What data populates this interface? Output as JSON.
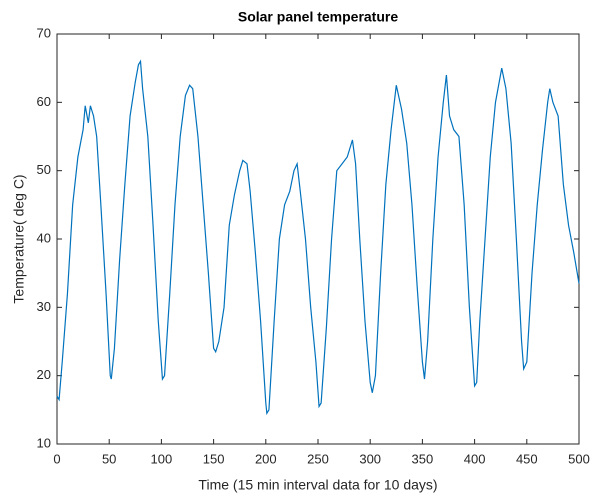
{
  "chart_data": {
    "type": "line",
    "title": "Solar panel temperature",
    "x_label": "Time (15 min interval data for 10 days)",
    "y_label": "Temperature( deg C)",
    "x": [
      0,
      2,
      5,
      10,
      15,
      20,
      25,
      27,
      30,
      32,
      35,
      38,
      42,
      47,
      51,
      52,
      55,
      60,
      65,
      70,
      75,
      78,
      80,
      82,
      87,
      92,
      97,
      101,
      103,
      108,
      113,
      118,
      123,
      127,
      130,
      135,
      140,
      145,
      150,
      152,
      155,
      160,
      165,
      170,
      175,
      178,
      182,
      185,
      190,
      195,
      200,
      201,
      203,
      208,
      213,
      218,
      223,
      227,
      230,
      233,
      238,
      243,
      248,
      251,
      253,
      258,
      263,
      268,
      273,
      278,
      283,
      286,
      290,
      295,
      300,
      302,
      305,
      310,
      315,
      320,
      325,
      330,
      335,
      340,
      345,
      350,
      352,
      355,
      360,
      365,
      370,
      373,
      376,
      380,
      385,
      390,
      395,
      400,
      402,
      405,
      410,
      415,
      420,
      426,
      430,
      435,
      440,
      445,
      447,
      450,
      455,
      460,
      465,
      470,
      472,
      475,
      480,
      485,
      490,
      495,
      500
    ],
    "series": [
      {
        "name": "temperature",
        "color": "#0072bd",
        "values": [
          17,
          16.5,
          22,
          32,
          45,
          52,
          56,
          59.5,
          57,
          59.5,
          58,
          55,
          45,
          32,
          20,
          19.5,
          24,
          37,
          48,
          58,
          63,
          65.5,
          66,
          62,
          55,
          42,
          28,
          19.5,
          20,
          32,
          45,
          55,
          61,
          62.5,
          62,
          55,
          45,
          35,
          24,
          23.5,
          25,
          30,
          42,
          46.5,
          50,
          51.5,
          51,
          47,
          38,
          28,
          16,
          14.5,
          15,
          28,
          40,
          45,
          47,
          50,
          51,
          47,
          40,
          30,
          22,
          15.5,
          16,
          27,
          40,
          50,
          51,
          52,
          54.5,
          51,
          40,
          28,
          19,
          17.5,
          20,
          35,
          48,
          56,
          62.5,
          59,
          54,
          45,
          33,
          22,
          19.5,
          25,
          40,
          52,
          60,
          64,
          58,
          56,
          55,
          45,
          30,
          18.5,
          19,
          28,
          40,
          52,
          60,
          65,
          62,
          54,
          40,
          25,
          21,
          22,
          35,
          45,
          53,
          60,
          62,
          60,
          58,
          48,
          42,
          38,
          33.5
        ]
      }
    ],
    "xlim": [
      0,
      500
    ],
    "ylim": [
      10,
      70
    ],
    "xticks": [
      0,
      50,
      100,
      150,
      200,
      250,
      300,
      350,
      400,
      450,
      500
    ],
    "yticks": [
      10,
      20,
      30,
      40,
      50,
      60,
      70
    ]
  }
}
